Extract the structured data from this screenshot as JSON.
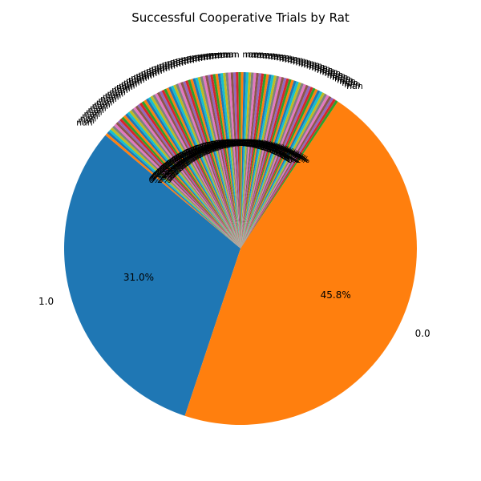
{
  "chart_data": {
    "type": "pie",
    "title": "Successful Cooperative Trials by Rat",
    "slices": [
      {
        "label": "0.0",
        "percent": 45.8,
        "color": "#ff7f0e",
        "pct_label": "45.8%"
      },
      {
        "label": "1.0",
        "percent": 31.0,
        "color": "#1f77b4",
        "pct_label": "31.0%"
      }
    ],
    "small_slices": {
      "label": "nan",
      "count": 100,
      "total_percent": 23.2,
      "pct_label": "0.2%",
      "palette": [
        "#2ca02c",
        "#d62728",
        "#9467bd",
        "#8c564b",
        "#e377c2",
        "#7f7f7f",
        "#bcbd22",
        "#17becf",
        "#1f77b4",
        "#ff7f0e"
      ]
    },
    "start_angle_deg": 140,
    "direction": "counterclockwise"
  }
}
